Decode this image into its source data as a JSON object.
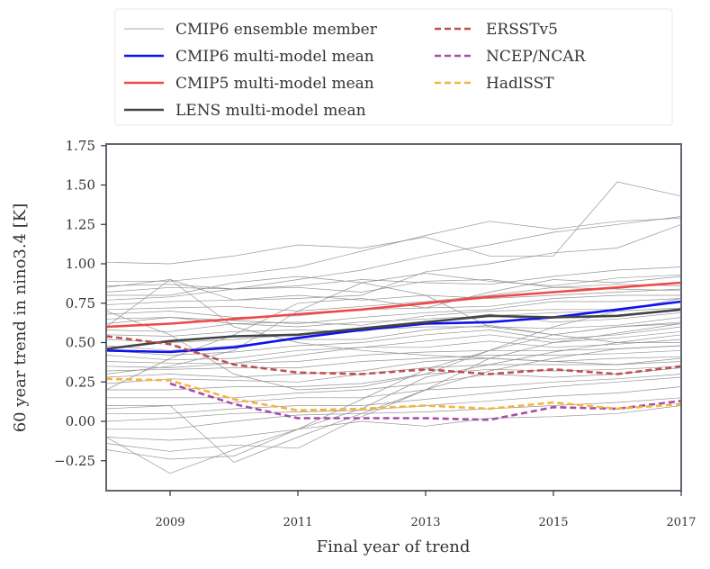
{
  "chart_data": {
    "type": "line",
    "xlabel": "Final year of trend",
    "ylabel": "60 year trend in nino3.4 [K]",
    "xlim": [
      2008,
      2017
    ],
    "ylim": [
      -0.44,
      1.76
    ],
    "x_ticks": [
      "2009",
      "2011",
      "2013",
      "2015",
      "2017"
    ],
    "y_ticks": [
      "−0.25",
      "0.00",
      "0.25",
      "0.50",
      "0.75",
      "1.00",
      "1.25",
      "1.50",
      "1.75"
    ],
    "legend_location": "top, above plot",
    "x": [
      2008,
      2009,
      2010,
      2011,
      2012,
      2013,
      2014,
      2015,
      2016,
      2017
    ],
    "series": [
      {
        "name": "CMIP6 multi-model mean",
        "color": "#0d12ee",
        "style": "solid",
        "values": [
          0.45,
          0.44,
          0.47,
          0.53,
          0.58,
          0.62,
          0.63,
          0.66,
          0.71,
          0.76
        ]
      },
      {
        "name": "CMIP5 multi-model mean",
        "color": "#f04848",
        "style": "solid",
        "values": [
          0.6,
          0.62,
          0.65,
          0.68,
          0.71,
          0.75,
          0.79,
          0.82,
          0.85,
          0.88
        ]
      },
      {
        "name": "LENS multi-model mean",
        "color": "#444444",
        "style": "solid",
        "values": [
          0.46,
          0.51,
          0.54,
          0.55,
          0.59,
          0.63,
          0.67,
          0.66,
          0.67,
          0.71
        ]
      },
      {
        "name": "ERSSTv5",
        "color": "#c05050",
        "style": "dashed",
        "values": [
          0.54,
          0.49,
          0.36,
          0.31,
          0.3,
          0.33,
          0.3,
          0.33,
          0.3,
          0.35
        ]
      },
      {
        "name": "NCEP/NCAR",
        "color": "#a84ca8",
        "style": "dashed",
        "values": [
          null,
          0.24,
          0.11,
          0.02,
          0.02,
          0.02,
          0.01,
          0.09,
          0.08,
          0.13
        ]
      },
      {
        "name": "HadISST",
        "color": "#f5b340",
        "style": "dashed",
        "values": [
          0.27,
          0.26,
          0.14,
          0.07,
          0.08,
          0.1,
          0.08,
          0.12,
          0.08,
          0.11
        ]
      }
    ],
    "ensemble": {
      "name": "CMIP6 ensemble member",
      "color": "#8a8a8a",
      "members": [
        [
          1.01,
          1.0,
          1.05,
          1.12,
          1.1,
          1.17,
          1.05,
          1.05,
          1.52,
          1.43
        ],
        [
          0.89,
          0.89,
          0.93,
          0.98,
          1.08,
          1.18,
          1.27,
          1.22,
          1.27,
          1.29
        ],
        [
          0.86,
          0.87,
          0.84,
          0.9,
          0.96,
          1.05,
          1.12,
          1.2,
          1.25,
          1.3
        ],
        [
          0.85,
          0.9,
          0.77,
          0.78,
          0.8,
          0.95,
          1.0,
          1.07,
          1.1,
          1.25
        ],
        [
          0.82,
          0.85,
          0.84,
          0.86,
          0.9,
          0.88,
          0.87,
          0.92,
          0.96,
          0.98
        ],
        [
          0.8,
          0.8,
          0.88,
          0.92,
          0.88,
          0.94,
          0.89,
          0.86,
          0.91,
          0.93
        ],
        [
          0.77,
          0.79,
          0.84,
          0.85,
          0.82,
          0.89,
          0.9,
          0.85,
          0.87,
          0.86
        ],
        [
          0.74,
          0.76,
          0.77,
          0.8,
          0.77,
          0.8,
          0.78,
          0.8,
          0.82,
          0.84
        ],
        [
          0.71,
          0.72,
          0.73,
          0.7,
          0.73,
          0.76,
          0.8,
          0.85,
          0.84,
          0.83
        ],
        [
          0.68,
          0.7,
          0.66,
          0.67,
          0.71,
          0.72,
          0.73,
          0.78,
          0.8,
          0.8
        ],
        [
          0.65,
          0.66,
          0.64,
          0.62,
          0.66,
          0.69,
          0.71,
          0.76,
          0.76,
          0.78
        ],
        [
          0.62,
          0.66,
          0.62,
          0.63,
          0.61,
          0.67,
          0.7,
          0.71,
          0.71,
          0.76
        ],
        [
          0.58,
          0.57,
          0.62,
          0.6,
          0.63,
          0.65,
          0.67,
          0.69,
          0.7,
          0.72
        ],
        [
          0.55,
          0.54,
          0.57,
          0.58,
          0.57,
          0.63,
          0.68,
          0.63,
          0.65,
          0.69
        ],
        [
          0.52,
          0.5,
          0.52,
          0.55,
          0.58,
          0.6,
          0.6,
          0.59,
          0.61,
          0.66
        ],
        [
          0.48,
          0.45,
          0.48,
          0.52,
          0.52,
          0.58,
          0.61,
          0.55,
          0.6,
          0.63
        ],
        [
          0.45,
          0.42,
          0.44,
          0.48,
          0.5,
          0.55,
          0.58,
          0.52,
          0.55,
          0.6
        ],
        [
          0.42,
          0.39,
          0.4,
          0.45,
          0.47,
          0.51,
          0.55,
          0.5,
          0.53,
          0.57
        ],
        [
          0.38,
          0.37,
          0.37,
          0.42,
          0.47,
          0.47,
          0.51,
          0.47,
          0.49,
          0.52
        ],
        [
          0.35,
          0.34,
          0.37,
          0.38,
          0.42,
          0.44,
          0.45,
          0.45,
          0.46,
          0.48
        ],
        [
          0.32,
          0.33,
          0.34,
          0.34,
          0.38,
          0.4,
          0.42,
          0.42,
          0.43,
          0.45
        ],
        [
          0.28,
          0.3,
          0.28,
          0.3,
          0.32,
          0.38,
          0.4,
          0.38,
          0.4,
          0.41
        ],
        [
          0.24,
          0.27,
          0.26,
          0.25,
          0.3,
          0.34,
          0.36,
          0.36,
          0.36,
          0.38
        ],
        [
          0.2,
          0.2,
          0.22,
          0.22,
          0.24,
          0.3,
          0.33,
          0.32,
          0.33,
          0.35
        ],
        [
          0.15,
          0.15,
          0.15,
          0.18,
          0.2,
          0.24,
          0.3,
          0.28,
          0.3,
          0.34
        ],
        [
          0.1,
          0.1,
          0.12,
          0.15,
          0.15,
          0.2,
          0.22,
          0.25,
          0.27,
          0.3
        ],
        [
          0.05,
          0.05,
          0.08,
          0.1,
          0.1,
          0.14,
          0.18,
          0.22,
          0.25,
          0.28
        ],
        [
          0.0,
          0.02,
          0.05,
          0.06,
          0.07,
          0.1,
          0.13,
          0.16,
          0.18,
          0.22
        ],
        [
          -0.05,
          -0.05,
          0.0,
          0.04,
          0.05,
          0.06,
          0.08,
          0.1,
          0.12,
          0.15
        ],
        [
          -0.1,
          -0.12,
          -0.1,
          -0.05,
          0.0,
          -0.03,
          0.02,
          0.03,
          0.05,
          0.1
        ],
        [
          -0.14,
          -0.19,
          -0.15,
          -0.17,
          0.03,
          0.2,
          0.4,
          0.5,
          0.56,
          0.62
        ],
        [
          -0.18,
          -0.24,
          -0.22,
          -0.05,
          0.08,
          0.28,
          0.36,
          0.44,
          0.5,
          0.5
        ],
        [
          -0.1,
          -0.33,
          -0.18,
          -0.05,
          0.14,
          0.33,
          0.45,
          0.55,
          0.6,
          0.62
        ],
        [
          0.08,
          0.1,
          -0.26,
          -0.1,
          0.05,
          0.2,
          0.32,
          0.4,
          0.46,
          0.48
        ],
        [
          0.6,
          0.9,
          0.6,
          0.5,
          0.45,
          0.42,
          0.4,
          0.38,
          0.36,
          0.4
        ],
        [
          0.3,
          0.35,
          0.45,
          0.7,
          0.88,
          0.8,
          0.6,
          0.55,
          0.5,
          0.55
        ],
        [
          0.2,
          0.4,
          0.55,
          0.75,
          0.78,
          0.72,
          0.82,
          0.9,
          0.88,
          0.92
        ],
        [
          0.7,
          0.55,
          0.3,
          0.2,
          0.22,
          0.3,
          0.45,
          0.6,
          0.7,
          0.78
        ]
      ]
    },
    "legend": [
      {
        "label": "CMIP6 ensemble member",
        "color": "#8a8a8a",
        "style": "thin"
      },
      {
        "label": "CMIP6 multi-model mean",
        "color": "#0d12ee",
        "style": "solid"
      },
      {
        "label": "CMIP5 multi-model mean",
        "color": "#f04848",
        "style": "solid"
      },
      {
        "label": "LENS multi-model mean",
        "color": "#444444",
        "style": "solid"
      },
      {
        "label": "ERSSTv5",
        "color": "#c05050",
        "style": "dashed"
      },
      {
        "label": "NCEP/NCAR",
        "color": "#a84ca8",
        "style": "dashed"
      },
      {
        "label": "HadlSST",
        "color": "#f5b340",
        "style": "dashed"
      }
    ]
  }
}
